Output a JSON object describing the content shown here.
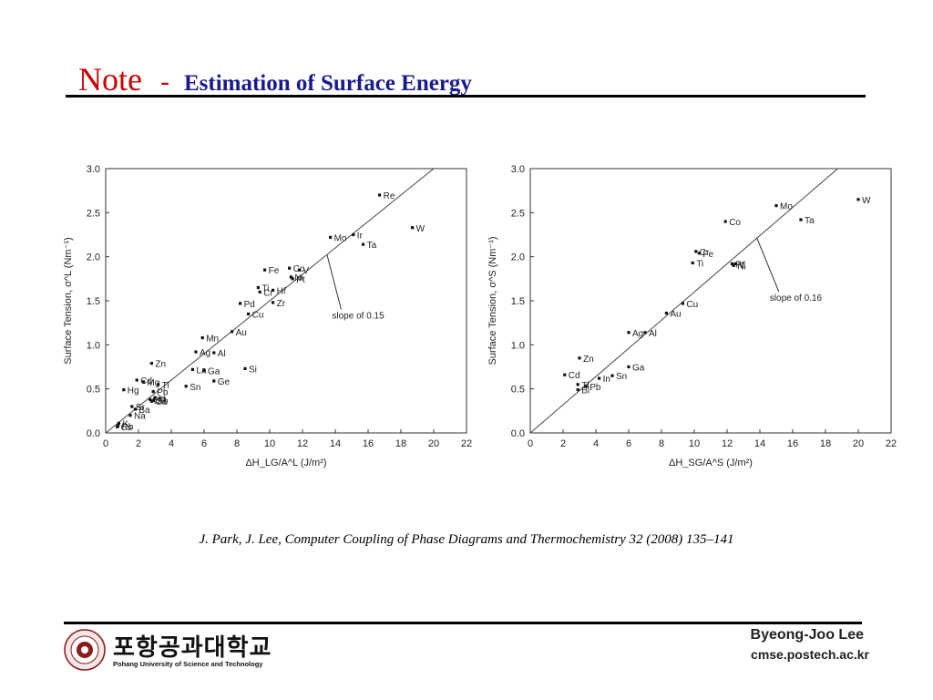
{
  "slide": {
    "title_note": "Note",
    "title_dash": "-",
    "title_subtitle": "Estimation of Surface Energy",
    "citation": "J. Park, J. Lee, Computer Coupling of Phase Diagrams and Thermochemistry 32 (2008) 135–141",
    "university_korean": "포항공과대학교",
    "university_english": "Pohang University of Science and Technology",
    "author": "Byeong-Joo Lee",
    "website": "cmse.postech.ac.kr"
  },
  "chart_data": [
    {
      "type": "scatter",
      "xlabel": "ΔH_LG/A^L (J/m²)",
      "ylabel": "Surface Tension, σ^L (Nm⁻¹)",
      "xlim": [
        0,
        22
      ],
      "ylim": [
        0,
        3.0
      ],
      "xticks": [
        0,
        2,
        4,
        6,
        8,
        10,
        12,
        14,
        16,
        18,
        20,
        22
      ],
      "yticks": [
        0.0,
        0.5,
        1.0,
        1.5,
        2.0,
        2.5,
        3.0
      ],
      "fit_line": {
        "slope": 0.15
      },
      "annotation": {
        "text": "slope of 0.15",
        "x": 13.8,
        "y": 1.3,
        "arrow_to": [
          13.5,
          2.02
        ]
      },
      "points": [
        {
          "label": "Re",
          "x": 16.7,
          "y": 2.7
        },
        {
          "label": "W",
          "x": 18.7,
          "y": 2.33
        },
        {
          "label": "Mo",
          "x": 13.7,
          "y": 2.22
        },
        {
          "label": "Ir",
          "x": 15.1,
          "y": 2.25
        },
        {
          "label": "Ta",
          "x": 15.7,
          "y": 2.14
        },
        {
          "label": "Fe",
          "x": 9.7,
          "y": 1.85
        },
        {
          "label": "Co",
          "x": 11.2,
          "y": 1.87
        },
        {
          "label": "V",
          "x": 11.8,
          "y": 1.85
        },
        {
          "label": "Ti",
          "x": 9.3,
          "y": 1.65
        },
        {
          "label": "Hf",
          "x": 10.2,
          "y": 1.62
        },
        {
          "label": "Pt",
          "x": 11.4,
          "y": 1.75
        },
        {
          "label": "Cr",
          "x": 9.4,
          "y": 1.6
        },
        {
          "label": "Zr",
          "x": 10.2,
          "y": 1.48
        },
        {
          "label": "Pd",
          "x": 8.2,
          "y": 1.47
        },
        {
          "label": "Ni",
          "x": 11.3,
          "y": 1.77
        },
        {
          "label": "Cu",
          "x": 8.7,
          "y": 1.35
        },
        {
          "label": "Au",
          "x": 7.7,
          "y": 1.15
        },
        {
          "label": "Mn",
          "x": 5.9,
          "y": 1.08
        },
        {
          "label": "Ag",
          "x": 5.5,
          "y": 0.92
        },
        {
          "label": "Al",
          "x": 6.6,
          "y": 0.91
        },
        {
          "label": "Si",
          "x": 8.5,
          "y": 0.73
        },
        {
          "label": "La",
          "x": 5.3,
          "y": 0.72
        },
        {
          "label": "Ga",
          "x": 6.0,
          "y": 0.71
        },
        {
          "label": "Ge",
          "x": 6.6,
          "y": 0.59
        },
        {
          "label": "Sn",
          "x": 4.9,
          "y": 0.53
        },
        {
          "label": "Hg",
          "x": 1.1,
          "y": 0.49
        },
        {
          "label": "Mg",
          "x": 2.3,
          "y": 0.58
        },
        {
          "label": "Zn",
          "x": 2.8,
          "y": 0.79
        },
        {
          "label": "Cd",
          "x": 1.9,
          "y": 0.6
        },
        {
          "label": "Pb",
          "x": 2.9,
          "y": 0.47
        },
        {
          "label": "Ti",
          "x": 3.2,
          "y": 0.55
        },
        {
          "label": "In",
          "x": 3.0,
          "y": 0.4
        },
        {
          "label": "Bi",
          "x": 2.7,
          "y": 0.38
        },
        {
          "label": "Li",
          "x": 3.0,
          "y": 0.4
        },
        {
          "label": "Sb",
          "x": 2.9,
          "y": 0.37
        },
        {
          "label": "Ba",
          "x": 1.8,
          "y": 0.27
        },
        {
          "label": "Cs",
          "x": 0.7,
          "y": 0.07
        },
        {
          "label": "Sr",
          "x": 1.6,
          "y": 0.3
        },
        {
          "label": "K",
          "x": 0.8,
          "y": 0.11
        },
        {
          "label": "Na",
          "x": 1.5,
          "y": 0.2
        },
        {
          "label": "Ca",
          "x": 2.8,
          "y": 0.36
        },
        {
          "label": "Rb",
          "x": 0.75,
          "y": 0.08
        }
      ]
    },
    {
      "type": "scatter",
      "xlabel": "ΔH_SG/A^S (J/m²)",
      "ylabel": "Surface Tension, σ^S (Nm⁻¹)",
      "xlim": [
        0,
        22
      ],
      "ylim": [
        0,
        3.0
      ],
      "xticks": [
        0,
        2,
        4,
        6,
        8,
        10,
        12,
        14,
        16,
        18,
        20,
        22
      ],
      "yticks": [
        0.0,
        0.5,
        1.0,
        1.5,
        2.0,
        2.5,
        3.0
      ],
      "fit_line": {
        "slope": 0.16
      },
      "annotation": {
        "text": "slope of 0.16",
        "x": 14.6,
        "y": 1.5,
        "arrow_to": [
          13.8,
          2.22
        ]
      },
      "points": [
        {
          "label": "W",
          "x": 20.0,
          "y": 2.65
        },
        {
          "label": "Mo",
          "x": 15.0,
          "y": 2.58
        },
        {
          "label": "Ta",
          "x": 16.5,
          "y": 2.42
        },
        {
          "label": "Co",
          "x": 11.9,
          "y": 2.4
        },
        {
          "label": "Cr",
          "x": 10.1,
          "y": 2.06
        },
        {
          "label": "Fe",
          "x": 10.3,
          "y": 2.04
        },
        {
          "label": "Pt",
          "x": 12.3,
          "y": 1.92
        },
        {
          "label": "Ti",
          "x": 9.9,
          "y": 1.93
        },
        {
          "label": "Ni",
          "x": 12.4,
          "y": 1.9
        },
        {
          "label": "V",
          "x": 12.5,
          "y": 1.92
        },
        {
          "label": "Cu",
          "x": 9.3,
          "y": 1.47
        },
        {
          "label": "Au",
          "x": 8.3,
          "y": 1.36
        },
        {
          "label": "Ag",
          "x": 6.0,
          "y": 1.14
        },
        {
          "label": "Al",
          "x": 7.0,
          "y": 1.14
        },
        {
          "label": "Zn",
          "x": 3.0,
          "y": 0.85
        },
        {
          "label": "Ga",
          "x": 6.0,
          "y": 0.75
        },
        {
          "label": "Cd",
          "x": 2.1,
          "y": 0.66
        },
        {
          "label": "In",
          "x": 4.2,
          "y": 0.62
        },
        {
          "label": "Sn",
          "x": 5.0,
          "y": 0.65
        },
        {
          "label": "Tl",
          "x": 2.9,
          "y": 0.55
        },
        {
          "label": "Pb",
          "x": 3.4,
          "y": 0.53
        },
        {
          "label": "Bi",
          "x": 2.9,
          "y": 0.49
        }
      ]
    }
  ]
}
